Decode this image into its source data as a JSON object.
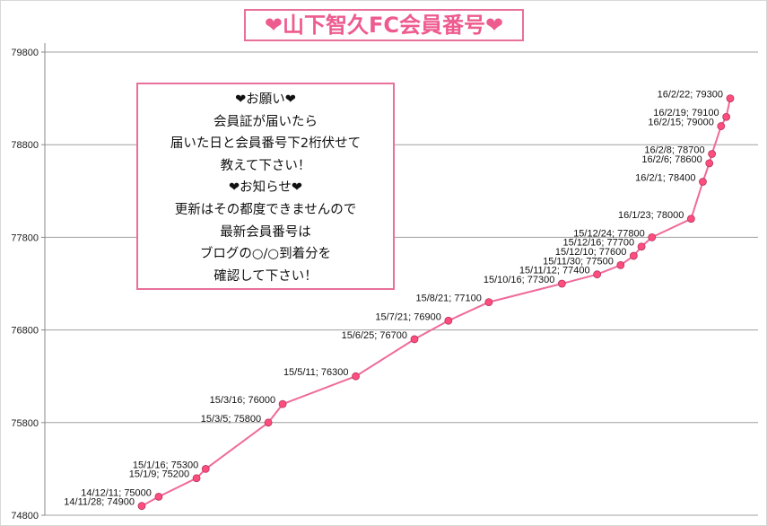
{
  "chart_data": {
    "type": "line",
    "title": "❤山下智久FC会員番号❤",
    "ylim": [
      74800,
      79800
    ],
    "yticks": [
      74800,
      75800,
      76800,
      77800,
      78800,
      79800
    ],
    "grid": true,
    "line_color": "#f06a9a",
    "marker_color": "#ff4d7d",
    "points": [
      {
        "label": "14/11/28; 74900",
        "date": "2014-11-28",
        "y": 74900
      },
      {
        "label": "14/12/11; 75000",
        "date": "2014-12-11",
        "y": 75000
      },
      {
        "label": "15/1/9; 75200",
        "date": "2015-01-09",
        "y": 75200
      },
      {
        "label": "15/1/16; 75300",
        "date": "2015-01-16",
        "y": 75300
      },
      {
        "label": "15/3/5; 75800",
        "date": "2015-03-05",
        "y": 75800
      },
      {
        "label": "15/3/16; 76000",
        "date": "2015-03-16",
        "y": 76000
      },
      {
        "label": "15/5/11; 76300",
        "date": "2015-05-11",
        "y": 76300
      },
      {
        "label": "15/6/25; 76700",
        "date": "2015-06-25",
        "y": 76700
      },
      {
        "label": "15/7/21; 76900",
        "date": "2015-07-21",
        "y": 76900
      },
      {
        "label": "15/8/21; 77100",
        "date": "2015-08-21",
        "y": 77100
      },
      {
        "label": "15/10/16; 77300",
        "date": "2015-10-16",
        "y": 77300
      },
      {
        "label": "15/11/12; 77400",
        "date": "2015-11-12",
        "y": 77400
      },
      {
        "label": "15/11/30; 77500",
        "date": "2015-11-30",
        "y": 77500
      },
      {
        "label": "15/12/10; 77600",
        "date": "2015-12-10",
        "y": 77600
      },
      {
        "label": "15/12/16; 77700",
        "date": "2015-12-16",
        "y": 77700
      },
      {
        "label": "15/12/24; 77800",
        "date": "2015-12-24",
        "y": 77800
      },
      {
        "label": "16/1/23; 78000",
        "date": "2016-01-23",
        "y": 78000
      },
      {
        "label": "16/2/1; 78400",
        "date": "2016-02-01",
        "y": 78400
      },
      {
        "label": "16/2/6; 78600",
        "date": "2016-02-06",
        "y": 78600
      },
      {
        "label": "16/2/8; 78700",
        "date": "2016-02-08",
        "y": 78700
      },
      {
        "label": "16/2/15; 79000",
        "date": "2016-02-15",
        "y": 79000
      },
      {
        "label": "16/2/19; 79100",
        "date": "2016-02-19",
        "y": 79100
      },
      {
        "label": "16/2/22; 79300",
        "date": "2016-02-22",
        "y": 79300
      }
    ]
  },
  "note": {
    "lines": [
      "❤お願い❤",
      "会員証が届いたら",
      "届いた日と会員番号下2桁伏せて",
      "教えて下さい！",
      "❤お知らせ❤",
      "更新はその都度できませんので",
      "最新会員番号は",
      "ブログの○/○到着分を",
      "確認して下さい！"
    ]
  }
}
